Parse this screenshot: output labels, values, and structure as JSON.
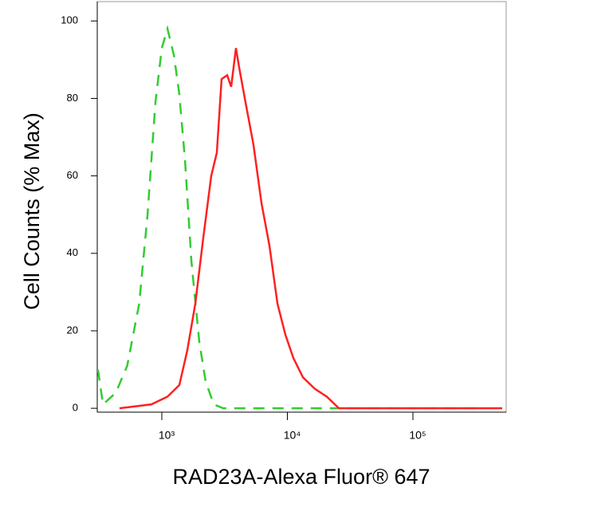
{
  "chart_data": {
    "type": "line",
    "xlabel": "RAD23A-Alexa Fluor® 647",
    "ylabel": "Cell Counts (% Max)",
    "xscale": "log",
    "xlim": [
      306,
      553000
    ],
    "ylim": [
      -1,
      105
    ],
    "xticks": [
      {
        "value": 1000,
        "label": "10³"
      },
      {
        "value": 10000,
        "label": "10⁴"
      },
      {
        "value": 100000,
        "label": "10⁵"
      }
    ],
    "yticks": [
      0,
      20,
      40,
      60,
      80,
      100
    ],
    "series": [
      {
        "color": "#33cc33",
        "linestyle": "dashed",
        "x": [
          310,
          340,
          430,
          530,
          660,
          770,
          890,
          1000,
          1110,
          1250,
          1380,
          1530,
          1720,
          1990,
          2230,
          2590,
          3080,
          330000
        ],
        "values": [
          10,
          1,
          4,
          11,
          27,
          50,
          79,
          93,
          98,
          91,
          81,
          64,
          38,
          17,
          7,
          1,
          0,
          0
        ]
      },
      {
        "color": "#ff2020",
        "linestyle": "solid",
        "x": [
          460,
          826,
          1108,
          1380,
          1597,
          1849,
          2138,
          2476,
          2742,
          2994,
          3316,
          3566,
          3893,
          4127,
          4641,
          5370,
          6219,
          7194,
          8337,
          9640,
          11160,
          13300,
          16560,
          20610,
          25700,
          32000,
          514000
        ],
        "values": [
          0,
          1,
          3,
          6,
          15,
          27,
          44,
          60,
          66,
          85,
          86,
          83,
          93,
          88,
          79,
          68,
          53,
          42,
          27,
          19,
          13,
          8,
          5,
          3,
          0,
          0,
          0
        ]
      }
    ]
  }
}
